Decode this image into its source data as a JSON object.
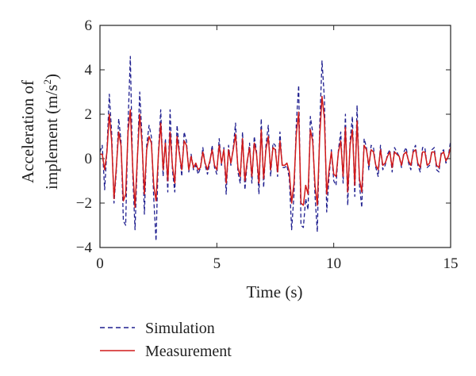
{
  "chart_data": {
    "type": "line",
    "title": "",
    "xlabel": "Time (s)",
    "ylabel_line1": "Acceleration of",
    "ylabel_line2_main": "implement (m/s",
    "ylabel_line2_sup": "2",
    "ylabel_line2_end": ")",
    "xlim": [
      0,
      15
    ],
    "ylim": [
      -4,
      6
    ],
    "xticks": [
      0,
      5,
      10,
      15
    ],
    "yticks": [
      -4,
      -2,
      0,
      2,
      4,
      6
    ],
    "grid": false,
    "legend_position": "bottom-left, below plot",
    "series": [
      {
        "name": "Simulation",
        "color": "#1f1f8f",
        "style": "dashed",
        "x": [
          0,
          0.1,
          0.2,
          0.3,
          0.4,
          0.5,
          0.6,
          0.7,
          0.8,
          0.9,
          1.0,
          1.1,
          1.2,
          1.3,
          1.4,
          1.5,
          1.6,
          1.7,
          1.8,
          1.9,
          2.0,
          2.1,
          2.2,
          2.3,
          2.4,
          2.5,
          2.6,
          2.7,
          2.8,
          2.9,
          3.0,
          3.1,
          3.2,
          3.3,
          3.4,
          3.5,
          3.6,
          3.7,
          3.8,
          3.9,
          4.0,
          4.1,
          4.2,
          4.3,
          4.4,
          4.5,
          4.6,
          4.7,
          4.8,
          4.9,
          5.0,
          5.1,
          5.2,
          5.3,
          5.4,
          5.5,
          5.6,
          5.7,
          5.8,
          5.9,
          6.0,
          6.1,
          6.2,
          6.3,
          6.4,
          6.5,
          6.6,
          6.7,
          6.8,
          6.9,
          7.0,
          7.1,
          7.2,
          7.3,
          7.4,
          7.5,
          7.6,
          7.7,
          7.8,
          7.9,
          8.0,
          8.1,
          8.2,
          8.3,
          8.4,
          8.5,
          8.6,
          8.7,
          8.8,
          8.9,
          9.0,
          9.1,
          9.2,
          9.3,
          9.4,
          9.5,
          9.6,
          9.7,
          9.8,
          9.9,
          10.0,
          10.1,
          10.2,
          10.3,
          10.4,
          10.5,
          10.6,
          10.7,
          10.8,
          10.9,
          11.0,
          11.1,
          11.2,
          11.3,
          11.4,
          11.5,
          11.6,
          11.7,
          11.8,
          11.9,
          12.0,
          12.1,
          12.2,
          12.3,
          12.4,
          12.5,
          12.6,
          12.7,
          12.8,
          12.9,
          13.0,
          13.1,
          13.2,
          13.3,
          13.4,
          13.5,
          13.6,
          13.7,
          13.8,
          13.9,
          14.0,
          14.1,
          14.2,
          14.3,
          14.4,
          14.5,
          14.6,
          14.7,
          14.8,
          14.9,
          15.0
        ],
        "y": [
          0.3,
          0.6,
          -1.4,
          0.4,
          2.9,
          1.2,
          -2.0,
          -0.6,
          1.8,
          0.8,
          -2.8,
          -3.0,
          1.6,
          4.6,
          -0.7,
          -3.2,
          -0.1,
          3.0,
          1.0,
          -2.5,
          0.6,
          1.5,
          1.0,
          -1.8,
          -3.7,
          0.3,
          2.2,
          -0.8,
          0.9,
          -1.5,
          2.2,
          -0.5,
          -1.5,
          1.5,
          0.3,
          -0.8,
          1.2,
          0.8,
          -0.6,
          0.2,
          -0.5,
          -0.3,
          -0.7,
          -0.4,
          0.5,
          -0.3,
          -0.7,
          -0.2,
          0.6,
          -0.4,
          -0.7,
          0.9,
          -0.3,
          0.5,
          -1.6,
          0.6,
          -0.3,
          0.5,
          1.6,
          -0.6,
          -1.1,
          1.2,
          -1.4,
          -0.2,
          0.7,
          -1.1,
          1.0,
          0.3,
          -1.6,
          1.8,
          -1.3,
          0.6,
          1.5,
          -0.8,
          0.7,
          0.6,
          -0.8,
          1.2,
          -0.4,
          -0.4,
          -0.3,
          -0.9,
          -3.2,
          -1.6,
          1.6,
          3.3,
          -3.0,
          -3.1,
          -1.8,
          -2.3,
          1.9,
          1.2,
          -1.7,
          -3.3,
          1.5,
          4.4,
          2.7,
          -2.4,
          -0.8,
          0.4,
          -1.0,
          -1.2,
          0.4,
          1.2,
          -1.1,
          2.0,
          -2.1,
          0.8,
          1.9,
          -1.7,
          2.4,
          -1.2,
          -2.2,
          0.9,
          0.5,
          -0.5,
          0.6,
          0.5,
          -0.4,
          -0.8,
          0.6,
          -0.5,
          -0.3,
          0.2,
          0.4,
          -0.6,
          0.5,
          0.3,
          0.1,
          -0.4,
          0.3,
          0.5,
          -0.2,
          -0.5,
          0.4,
          0.6,
          -0.3,
          -0.6,
          0.5,
          0.5,
          -0.4,
          -0.3,
          0.4,
          0.5,
          -0.5,
          -0.6,
          0.3,
          0.4,
          -0.2,
          0.1,
          0.8
        ]
      },
      {
        "name": "Measurement",
        "color": "#d11a1a",
        "style": "solid",
        "x": [
          0,
          0.1,
          0.2,
          0.3,
          0.4,
          0.5,
          0.6,
          0.7,
          0.8,
          0.9,
          1.0,
          1.1,
          1.2,
          1.3,
          1.4,
          1.5,
          1.6,
          1.7,
          1.8,
          1.9,
          2.0,
          2.1,
          2.2,
          2.3,
          2.4,
          2.5,
          2.6,
          2.7,
          2.8,
          2.9,
          3.0,
          3.1,
          3.2,
          3.3,
          3.4,
          3.5,
          3.6,
          3.7,
          3.8,
          3.9,
          4.0,
          4.1,
          4.2,
          4.3,
          4.4,
          4.5,
          4.6,
          4.7,
          4.8,
          4.9,
          5.0,
          5.1,
          5.2,
          5.3,
          5.4,
          5.5,
          5.6,
          5.7,
          5.8,
          5.9,
          6.0,
          6.1,
          6.2,
          6.3,
          6.4,
          6.5,
          6.6,
          6.7,
          6.8,
          6.9,
          7.0,
          7.1,
          7.2,
          7.3,
          7.4,
          7.5,
          7.6,
          7.7,
          7.8,
          7.9,
          8.0,
          8.1,
          8.2,
          8.3,
          8.4,
          8.5,
          8.6,
          8.7,
          8.8,
          8.9,
          9.0,
          9.1,
          9.2,
          9.3,
          9.4,
          9.5,
          9.6,
          9.7,
          9.8,
          9.9,
          10.0,
          10.1,
          10.2,
          10.3,
          10.4,
          10.5,
          10.6,
          10.7,
          10.8,
          10.9,
          11.0,
          11.1,
          11.2,
          11.3,
          11.4,
          11.5,
          11.6,
          11.7,
          11.8,
          11.9,
          12.0,
          12.1,
          12.2,
          12.3,
          12.4,
          12.5,
          12.6,
          12.7,
          12.8,
          12.9,
          13.0,
          13.1,
          13.2,
          13.3,
          13.4,
          13.5,
          13.6,
          13.7,
          13.8,
          13.9,
          14.0,
          14.1,
          14.2,
          14.3,
          14.4,
          14.5,
          14.6,
          14.7,
          14.8,
          14.9,
          15.0
        ],
        "y": [
          0.2,
          0.2,
          -0.5,
          0.3,
          2.0,
          0.8,
          -1.8,
          -0.4,
          1.2,
          0.6,
          -1.9,
          -1.6,
          1.2,
          2.2,
          -0.4,
          -2.2,
          0.0,
          2.0,
          0.7,
          -1.6,
          0.4,
          1.0,
          0.7,
          -1.2,
          -1.9,
          0.2,
          1.6,
          -0.5,
          0.7,
          -1.0,
          1.2,
          -0.3,
          -1.1,
          1.0,
          0.2,
          -0.5,
          0.8,
          0.6,
          -0.5,
          0.1,
          -0.4,
          -0.2,
          -0.5,
          -0.4,
          0.3,
          -0.2,
          -0.5,
          -0.1,
          0.4,
          -0.3,
          -0.5,
          0.6,
          -0.2,
          0.4,
          -1.1,
          0.4,
          -0.2,
          0.4,
          1.1,
          -0.4,
          -0.8,
          0.9,
          -1.0,
          -0.1,
          0.5,
          -0.8,
          0.7,
          0.2,
          -1.1,
          1.3,
          -0.9,
          0.4,
          1.0,
          -0.5,
          0.5,
          0.4,
          -0.6,
          0.8,
          -0.3,
          -0.3,
          -0.2,
          -0.6,
          -2.0,
          -1.1,
          1.1,
          2.1,
          -2.0,
          -2.1,
          -1.2,
          -1.6,
          1.3,
          0.8,
          -1.2,
          -2.1,
          1.0,
          2.8,
          1.8,
          -1.6,
          -0.5,
          0.3,
          -0.7,
          -0.8,
          0.3,
          0.8,
          -0.8,
          1.4,
          -1.5,
          0.6,
          1.3,
          -1.2,
          1.7,
          -0.9,
          -1.5,
          0.6,
          0.4,
          -0.3,
          0.4,
          0.3,
          -0.3,
          -0.5,
          0.4,
          -0.3,
          -0.2,
          0.1,
          0.3,
          -0.4,
          0.3,
          0.2,
          0.1,
          -0.3,
          0.2,
          0.3,
          -0.1,
          -0.3,
          0.3,
          0.4,
          -0.2,
          -0.4,
          0.3,
          0.3,
          -0.3,
          -0.2,
          0.3,
          0.3,
          -0.3,
          -0.4,
          0.2,
          0.3,
          -0.1,
          0.1,
          0.5
        ]
      }
    ]
  }
}
